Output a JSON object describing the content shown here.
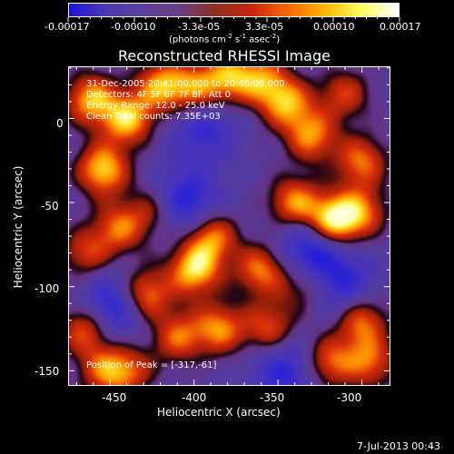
{
  "colorbar": {
    "ticks": [
      "-0.00017",
      "-0.00010",
      "-3.3e-05",
      "3.3e-05",
      "0.00010",
      "0.00017"
    ],
    "units_prefix": "(photons cm",
    "units_mid1": " s",
    "units_mid2": " asec",
    "units_suffix": ")",
    "exp1": "-2",
    "exp2": "-1",
    "exp3": "-2",
    "colors": [
      "#1b14d8",
      "#4b3ab0",
      "#5a40a0",
      "#6a3e86",
      "#8f3020",
      "#c7260d",
      "#ff6a00",
      "#ffb400",
      "#ffff66",
      "#ffffff"
    ]
  },
  "title": "Reconstructed RHESSI Image",
  "annotations": {
    "time": "31-Dec-2005 20:41:00.000 to 20:46:08.000",
    "detectors": "Detectors: 4F 5F 6F 7F 8F, Att 0",
    "energy": "Energy Range: 12.0 - 25.0 keV",
    "clean": "Clean    Total counts: 7.35E+03",
    "peak": "Position of Peak = [-317,-61]"
  },
  "axes": {
    "xlabel": "Heliocentric X (arcsec)",
    "ylabel": "Heliocentric Y (arcsec)",
    "xticks": [
      "-450",
      "-400",
      "-350",
      "-300"
    ],
    "yticks": [
      "0",
      "-50",
      "-100",
      "-150"
    ]
  },
  "footer": {
    "date": "7-Jul-2013 00:43"
  },
  "chart_data": {
    "type": "heatmap",
    "title": "Reconstructed RHESSI Image",
    "xlabel": "Heliocentric X (arcsec)",
    "ylabel": "Heliocentric Y (arcsec)",
    "xlim": [
      -475,
      -283
    ],
    "ylim": [
      -159,
      31
    ],
    "colorbar_range": [
      -0.00017,
      0.00017
    ],
    "colorbar_units": "photons cm^-2 s^-1 asec^-2",
    "peak_position": [
      -317,
      -61
    ],
    "blobs": [
      {
        "x": -462,
        "y": 12,
        "intensity": 0.9
      },
      {
        "x": -440,
        "y": 0,
        "intensity": 0.95
      },
      {
        "x": -455,
        "y": -30,
        "intensity": 1.0
      },
      {
        "x": -420,
        "y": 20,
        "intensity": 0.85
      },
      {
        "x": -400,
        "y": 18,
        "intensity": 0.75
      },
      {
        "x": -380,
        "y": 25,
        "intensity": 0.8
      },
      {
        "x": -360,
        "y": 24,
        "intensity": 0.7
      },
      {
        "x": -345,
        "y": 10,
        "intensity": 0.85
      },
      {
        "x": -330,
        "y": -10,
        "intensity": 0.8
      },
      {
        "x": -310,
        "y": 15,
        "intensity": 0.6
      },
      {
        "x": -300,
        "y": -25,
        "intensity": 0.75
      },
      {
        "x": -340,
        "y": -50,
        "intensity": 0.85
      },
      {
        "x": -317,
        "y": -61,
        "intensity": 1.2
      },
      {
        "x": -300,
        "y": -55,
        "intensity": 0.7
      },
      {
        "x": -465,
        "y": -80,
        "intensity": 0.6
      },
      {
        "x": -445,
        "y": -65,
        "intensity": 0.7
      },
      {
        "x": -425,
        "y": -55,
        "intensity": 0.5
      },
      {
        "x": -400,
        "y": -90,
        "intensity": 1.0
      },
      {
        "x": -390,
        "y": -70,
        "intensity": 0.85
      },
      {
        "x": -360,
        "y": -90,
        "intensity": 0.8
      },
      {
        "x": -335,
        "y": -100,
        "intensity": 0.5
      },
      {
        "x": -300,
        "y": -120,
        "intensity": 0.8
      },
      {
        "x": -430,
        "y": -105,
        "intensity": 0.95
      },
      {
        "x": -410,
        "y": -130,
        "intensity": 0.7
      },
      {
        "x": -385,
        "y": -125,
        "intensity": 0.8
      },
      {
        "x": -355,
        "y": -125,
        "intensity": 0.7
      },
      {
        "x": -320,
        "y": -145,
        "intensity": 0.75
      },
      {
        "x": -295,
        "y": -145,
        "intensity": 0.7
      },
      {
        "x": -465,
        "y": -125,
        "intensity": 0.8
      },
      {
        "x": -455,
        "y": -150,
        "intensity": 0.6
      },
      {
        "x": -440,
        "y": -150,
        "intensity": 0.65
      }
    ],
    "negative_regions": [
      {
        "x": -448,
        "y": -112,
        "intensity": 1.0
      },
      {
        "x": -330,
        "y": -78,
        "intensity": 1.0
      },
      {
        "x": -405,
        "y": -50,
        "intensity": 0.9
      },
      {
        "x": -345,
        "y": -150,
        "intensity": 0.8
      },
      {
        "x": -395,
        "y": -5,
        "intensity": 0.7
      },
      {
        "x": -310,
        "y": -100,
        "intensity": 0.7
      }
    ]
  }
}
